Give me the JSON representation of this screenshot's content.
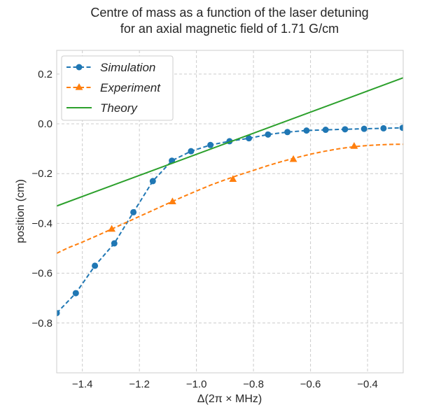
{
  "chart_data": {
    "type": "line",
    "title_line1": "Centre of mass as a function of the laser detuning",
    "title_line2": "for an axial magnetic field of 1.71 G/cm",
    "xlabel": "Δ(2π × MHz)",
    "ylabel": "position (cm)",
    "xlim": [
      -1.49,
      -0.275
    ],
    "ylim": [
      -1.0,
      0.295
    ],
    "x_ticks": [
      -1.4,
      -1.2,
      -1.0,
      -0.8,
      -0.6,
      -0.4
    ],
    "x_tick_labels": [
      "−1.4",
      "−1.2",
      "−1.0",
      "−0.8",
      "−0.6",
      "−0.4"
    ],
    "y_ticks": [
      0.2,
      0.0,
      -0.2,
      -0.4,
      -0.6,
      -0.8
    ],
    "y_tick_labels": [
      "0.2",
      "0.0",
      "−0.2",
      "−0.4",
      "−0.6",
      "−0.8"
    ],
    "grid": true,
    "legend_position": "top-left",
    "series": [
      {
        "name": "Simulation",
        "color": "#1f77b4",
        "style": "dashed",
        "marker": "circle",
        "x": [
          -1.49,
          -1.423,
          -1.356,
          -1.288,
          -1.221,
          -1.153,
          -1.086,
          -1.019,
          -0.951,
          -0.884,
          -0.816,
          -0.749,
          -0.681,
          -0.614,
          -0.547,
          -0.479,
          -0.412,
          -0.344,
          -0.277
        ],
        "y": [
          -0.76,
          -0.68,
          -0.57,
          -0.48,
          -0.355,
          -0.23,
          -0.148,
          -0.11,
          -0.085,
          -0.07,
          -0.058,
          -0.043,
          -0.033,
          -0.027,
          -0.024,
          -0.022,
          -0.02,
          -0.018,
          -0.016
        ]
      },
      {
        "name": "Experiment",
        "color": "#ff7f0e",
        "style": "dashed",
        "marker": "triangle",
        "x": [
          -1.297,
          -1.084,
          -0.872,
          -0.66,
          -0.447
        ],
        "y": [
          -0.423,
          -0.313,
          -0.223,
          -0.143,
          -0.09
        ],
        "curve_x": [
          -1.49,
          -1.45,
          -1.4,
          -1.35,
          -1.3,
          -1.25,
          -1.2,
          -1.15,
          -1.1,
          -1.05,
          -1.0,
          -0.95,
          -0.9,
          -0.85,
          -0.8,
          -0.75,
          -0.7,
          -0.65,
          -0.6,
          -0.55,
          -0.5,
          -0.45,
          -0.4,
          -0.35,
          -0.3,
          -0.275
        ],
        "curve_y": [
          -0.52,
          -0.498,
          -0.475,
          -0.45,
          -0.424,
          -0.398,
          -0.372,
          -0.346,
          -0.32,
          -0.294,
          -0.27,
          -0.246,
          -0.225,
          -0.205,
          -0.187,
          -0.168,
          -0.151,
          -0.136,
          -0.122,
          -0.11,
          -0.1,
          -0.092,
          -0.087,
          -0.084,
          -0.082,
          -0.082
        ]
      },
      {
        "name": "Theory",
        "color": "#2ca02c",
        "style": "solid",
        "marker": "none",
        "x": [
          -1.49,
          -0.275
        ],
        "y": [
          -0.33,
          0.185
        ]
      }
    ]
  }
}
